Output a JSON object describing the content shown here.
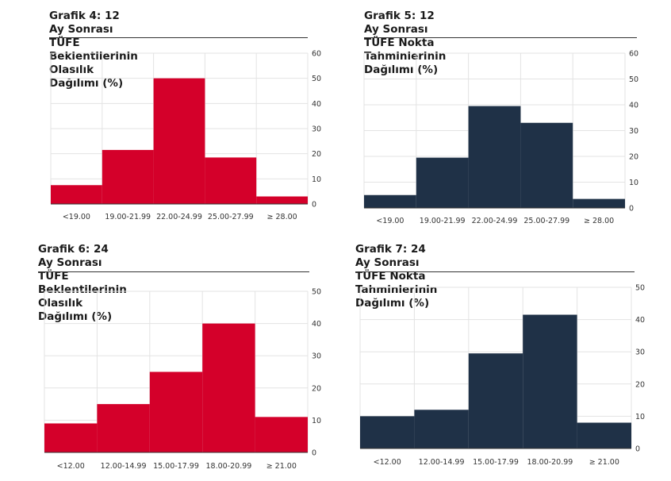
{
  "chart_data": [
    {
      "type": "bar",
      "title_line1": "Grafik 4: 12 Ay Sonrası TÜFE Beklentilerinin",
      "title_line2": "Olasılık Dağılımı (%)",
      "categories": [
        "<19.00",
        "19.00-21.99",
        "22.00-24.99",
        "25.00-27.99",
        "≥ 28.00"
      ],
      "values": [
        7.5,
        21.5,
        50,
        18.5,
        3
      ],
      "ylim": [
        0,
        60
      ],
      "yticks": [
        0,
        10,
        20,
        30,
        40,
        50,
        60
      ],
      "color": "#d4002a",
      "grid": true,
      "yaxis_side": "right"
    },
    {
      "type": "bar",
      "title_line1": "Grafik 5: 12 Ay Sonrası TÜFE Nokta",
      "title_line2": "Tahminlerinin Dağılımı (%)",
      "categories": [
        "<19.00",
        "19.00-21.99",
        "22.00-24.99",
        "25.00-27.99",
        "≥ 28.00"
      ],
      "values": [
        5,
        19.5,
        39.5,
        33,
        3.5
      ],
      "ylim": [
        0,
        60
      ],
      "yticks": [
        0,
        10,
        20,
        30,
        40,
        50,
        60
      ],
      "color": "#1f3147",
      "grid": true,
      "yaxis_side": "right"
    },
    {
      "type": "bar",
      "title_line1": "Grafik 6: 24 Ay Sonrası TÜFE Beklentilerinin",
      "title_line2": "Olasılık Dağılımı (%)",
      "categories": [
        "<12.00",
        "12.00-14.99",
        "15.00-17.99",
        "18.00-20.99",
        "≥ 21.00"
      ],
      "values": [
        9,
        15,
        25,
        40,
        11
      ],
      "ylim": [
        0,
        50
      ],
      "yticks": [
        0,
        10,
        20,
        30,
        40,
        50
      ],
      "color": "#d4002a",
      "grid": true,
      "yaxis_side": "right"
    },
    {
      "type": "bar",
      "title_line1": "Grafik 7: 24 Ay Sonrası TÜFE Nokta Tahminlerinin",
      "title_line2": "Dağılımı (%)",
      "categories": [
        "<12.00",
        "12.00-14.99",
        "15.00-17.99",
        "18.00-20.99",
        "≥ 21.00"
      ],
      "values": [
        10,
        12,
        29.5,
        41.5,
        8
      ],
      "ylim": [
        0,
        50
      ],
      "yticks": [
        0,
        10,
        20,
        30,
        40,
        50
      ],
      "color": "#1f3147",
      "grid": true,
      "yaxis_side": "right"
    }
  ]
}
